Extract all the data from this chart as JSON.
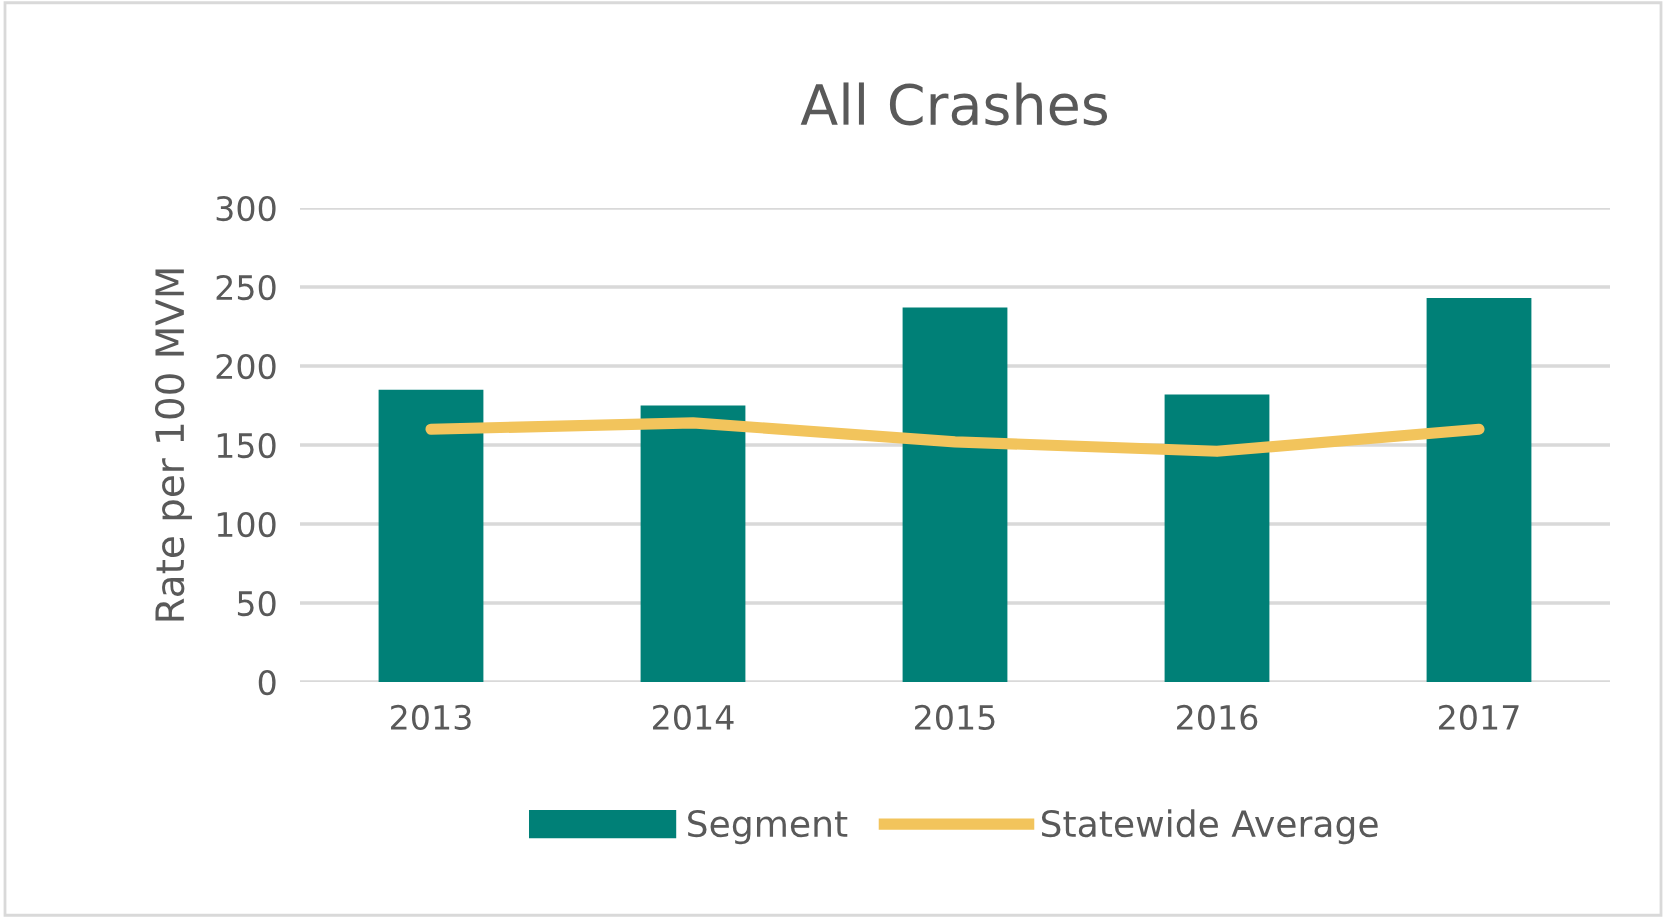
{
  "chart_data": {
    "type": "bar",
    "title": "All Crashes",
    "ylabel": "Rate per 100 MVM",
    "categories": [
      "2013",
      "2014",
      "2015",
      "2016",
      "2017"
    ],
    "series": [
      {
        "name": "Segment",
        "color": "#008077",
        "values": [
          185,
          175,
          237,
          182,
          243
        ]
      },
      {
        "name": "Statewide Average",
        "type": "line",
        "color": "#f2c45c",
        "values": [
          160,
          164,
          152,
          146,
          160
        ]
      }
    ],
    "ylim": [
      0,
      300
    ],
    "yticks": [
      0,
      50,
      100,
      150,
      200,
      250,
      300
    ],
    "grid": "y",
    "legend": "bottom",
    "marker": "none"
  }
}
